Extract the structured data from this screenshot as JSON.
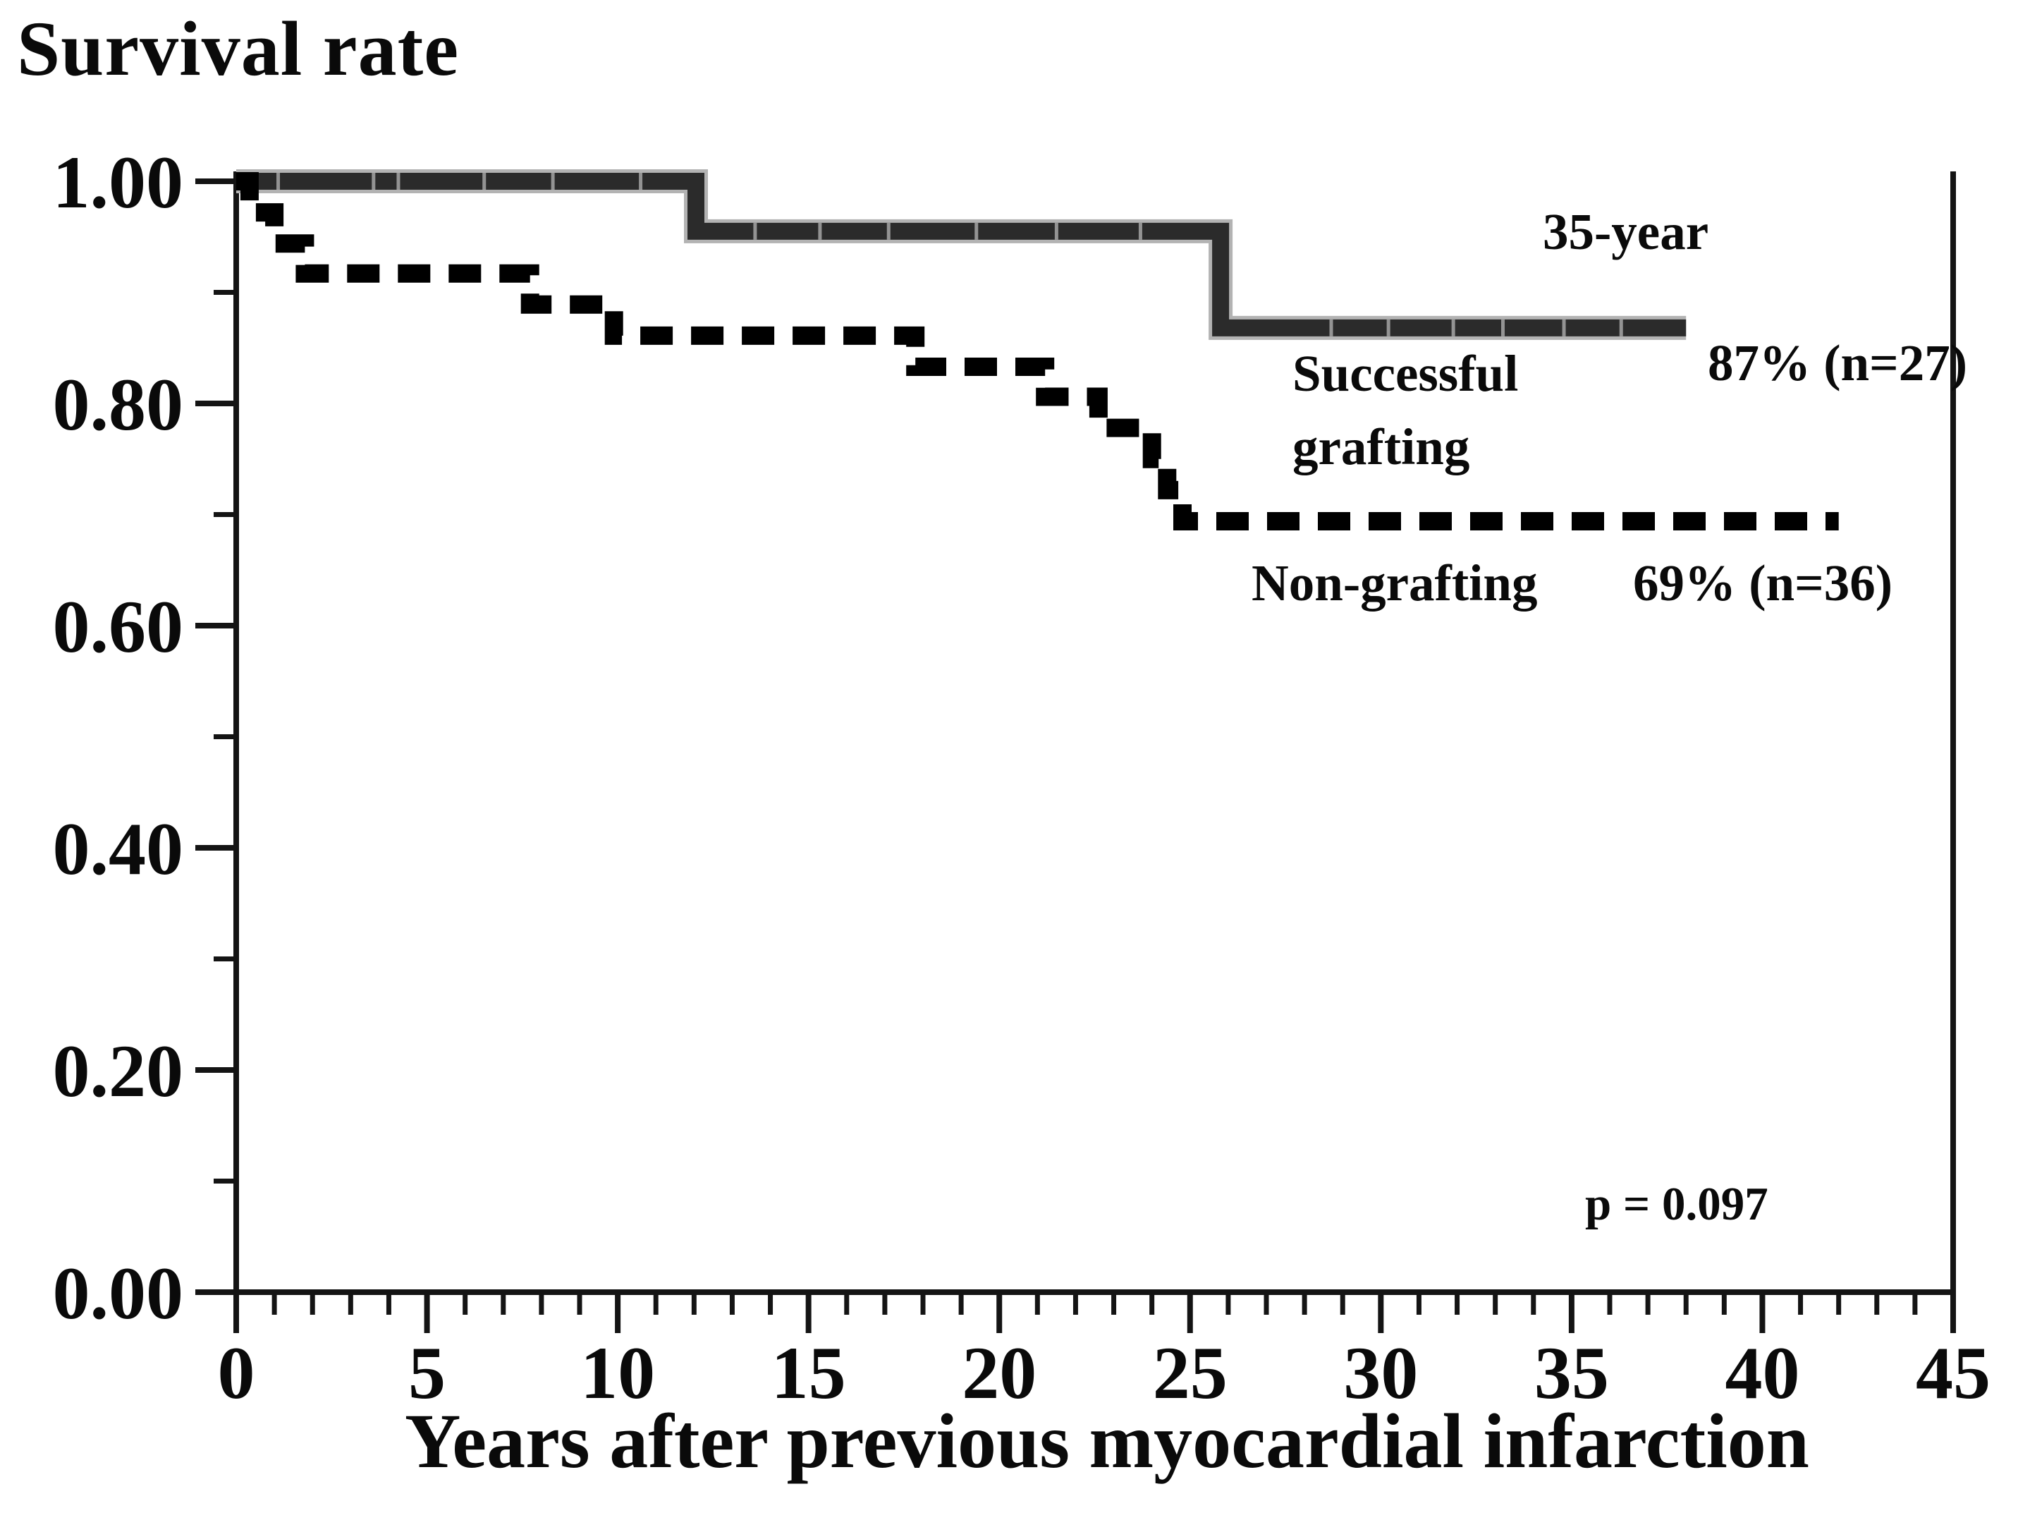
{
  "figure": {
    "title": "Survival rate",
    "x_axis_label": "Years after previous myocardial infarction",
    "annotations": {
      "time_label": "35-year",
      "series1_name": "Successful grafting",
      "series1_value": "87% (n=27)",
      "series2_name": "Non-grafting",
      "series2_value": "69% (n=36)",
      "p_value": "p = 0.097"
    }
  },
  "chart_data": {
    "type": "line",
    "chart_kind": "kaplan_meier_step_curve",
    "title": "Survival rate",
    "xlabel": "Years after previous myocardial infarction",
    "ylabel": "Survival rate",
    "xlim": [
      0,
      45
    ],
    "ylim": [
      0.0,
      1.0
    ],
    "x_major_ticks": [
      0,
      5,
      10,
      15,
      20,
      25,
      30,
      35,
      40,
      45
    ],
    "x_tick_labels": [
      "0",
      "5",
      "10",
      "15",
      "20",
      "25",
      "30",
      "35",
      "40",
      "45"
    ],
    "x_minor_tick_step": 1,
    "y_major_ticks": [
      0.0,
      0.2,
      0.4,
      0.6,
      0.8,
      1.0
    ],
    "y_tick_labels": [
      "0.00",
      "0.20",
      "0.40",
      "0.60",
      "0.80",
      "1.00"
    ],
    "y_minor_tick_step": 0.1,
    "grid": false,
    "legend_position": "inline-annotations",
    "axis_color": "#141414",
    "series": [
      {
        "name": "Successful grafting",
        "value_label": "87% (n=27)",
        "n": 27,
        "survival_at_35y": 0.87,
        "line_style": "solid",
        "color": "#2b2b2b",
        "halo_color": "#b3b3b3",
        "stroke_width": 24,
        "steps": [
          [
            0,
            1.0
          ],
          [
            12.05,
            0.955
          ],
          [
            25.8,
            0.868
          ]
        ],
        "end_time": 38.0,
        "censor_marks": [
          [
            1.1,
            1.0
          ],
          [
            3.6,
            1.0
          ],
          [
            4.25,
            1.0
          ],
          [
            6.5,
            1.0
          ],
          [
            8.3,
            1.0
          ],
          [
            10.6,
            1.0
          ],
          [
            13.6,
            0.955
          ],
          [
            15.3,
            0.955
          ],
          [
            17.1,
            0.955
          ],
          [
            19.4,
            0.955
          ],
          [
            21.5,
            0.955
          ],
          [
            23.7,
            0.955
          ],
          [
            28.7,
            0.868
          ],
          [
            30.2,
            0.868
          ],
          [
            31.9,
            0.868
          ],
          [
            33.2,
            0.868
          ],
          [
            34.8,
            0.868
          ],
          [
            36.3,
            0.868
          ]
        ]
      },
      {
        "name": "Non-grafting",
        "value_label": "69% (n=36)",
        "n": 36,
        "survival_at_35y": 0.69,
        "line_style": "dashed",
        "color": "#000000",
        "halo_color": null,
        "stroke_width": 26,
        "dash_pattern": [
          46,
          26
        ],
        "steps": [
          [
            0,
            1.0
          ],
          [
            0.35,
            0.972
          ],
          [
            1.0,
            0.944
          ],
          [
            1.8,
            0.917
          ],
          [
            7.7,
            0.889
          ],
          [
            9.9,
            0.861
          ],
          [
            17.8,
            0.833
          ],
          [
            21.2,
            0.806
          ],
          [
            22.6,
            0.778
          ],
          [
            24.0,
            0.75
          ],
          [
            24.4,
            0.722
          ],
          [
            24.8,
            0.694
          ]
        ],
        "end_time": 42.0,
        "censor_marks": []
      }
    ],
    "annotations": [
      {
        "text": "35-year",
        "x_year": 36.9,
        "y_value": 0.94
      },
      {
        "text": "Successful grafting",
        "x_year": 27.7,
        "y_value": 0.83
      },
      {
        "text": "87% (n=27)",
        "x_year": 38.6,
        "y_value": 0.83
      },
      {
        "text": "Non-grafting",
        "x_year": 26.6,
        "y_value": 0.63
      },
      {
        "text": "69% (n=36)",
        "x_year": 36.6,
        "y_value": 0.63
      },
      {
        "text": "p = 0.097",
        "x_year": 35.4,
        "y_value": 0.08
      }
    ]
  }
}
